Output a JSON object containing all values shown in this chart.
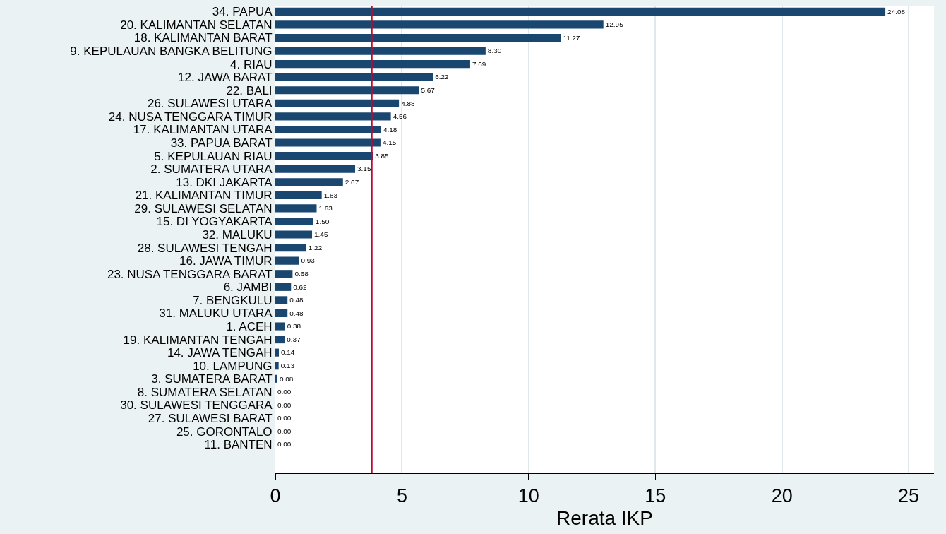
{
  "chart_data": {
    "type": "bar",
    "orientation": "horizontal",
    "xlabel": "Rerata IKP",
    "categories": [
      "34. PAPUA",
      "20. KALIMANTAN SELATAN",
      "18. KALIMANTAN BARAT",
      "9. KEPULAUAN BANGKA BELITUNG",
      "4. RIAU",
      "12. JAWA BARAT",
      "22. BALI",
      "26. SULAWESI UTARA",
      "24. NUSA TENGGARA TIMUR",
      "17. KALIMANTAN UTARA",
      "33. PAPUA BARAT",
      "5. KEPULAUAN RIAU",
      "2. SUMATERA UTARA",
      "13. DKI JAKARTA",
      "21. KALIMANTAN TIMUR",
      "29. SULAWESI SELATAN",
      "15. DI YOGYAKARTA",
      "32. MALUKU",
      "28. SULAWESI TENGAH",
      "16. JAWA TIMUR",
      "23. NUSA TENGGARA BARAT",
      "6. JAMBI",
      "7. BENGKULU",
      "31. MALUKU UTARA",
      "1. ACEH",
      "19. KALIMANTAN TENGAH",
      "14. JAWA TENGAH",
      "10. LAMPUNG",
      "3. SUMATERA BARAT",
      "8. SUMATERA SELATAN",
      "30. SULAWESI TENGGARA",
      "27. SULAWESI BARAT",
      "25. GORONTALO",
      "11. BANTEN"
    ],
    "values": [
      24.08,
      12.95,
      11.27,
      8.3,
      7.69,
      6.22,
      5.67,
      4.88,
      4.56,
      4.18,
      4.15,
      3.85,
      3.15,
      2.67,
      1.83,
      1.63,
      1.5,
      1.45,
      1.22,
      0.93,
      0.68,
      0.62,
      0.48,
      0.48,
      0.38,
      0.37,
      0.14,
      0.13,
      0.08,
      0,
      0,
      0,
      0,
      0
    ],
    "value_labels": [
      "24.08",
      "12.95",
      "11.27",
      "8.30",
      "7.69",
      "6.22",
      "5.67",
      "4.88",
      "4.56",
      "4.18",
      "4.15",
      "3.85",
      "3.15",
      "2.67",
      "1.83",
      "1.63",
      "1.50",
      "1.45",
      "1.22",
      "0.93",
      "0.68",
      "0.62",
      "0.48",
      "0.48",
      "0.38",
      "0.37",
      "0.14",
      "0.13",
      "0.08",
      "0.00",
      "0.00",
      "0.00",
      "0.00",
      "0.00"
    ],
    "color": "#1a476f",
    "xlim": [
      0,
      26
    ],
    "xticks": [
      0,
      5,
      10,
      15,
      20,
      25
    ],
    "ref_lines": [
      {
        "axis": "x",
        "value": 3.81,
        "color": "#c10534"
      }
    ],
    "grid": "x"
  }
}
